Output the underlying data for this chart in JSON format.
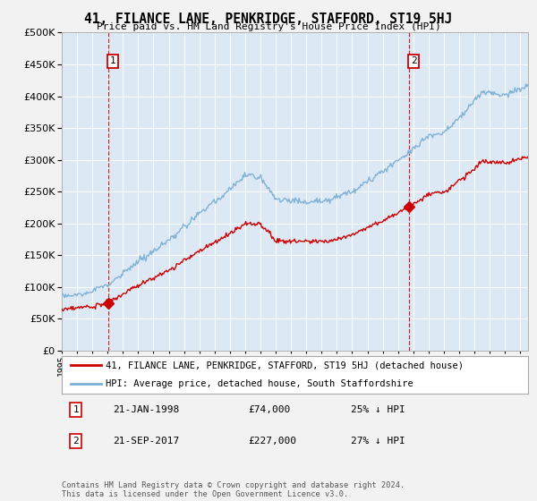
{
  "title": "41, FILANCE LANE, PENKRIDGE, STAFFORD, ST19 5HJ",
  "subtitle": "Price paid vs. HM Land Registry's House Price Index (HPI)",
  "legend_line1": "41, FILANCE LANE, PENKRIDGE, STAFFORD, ST19 5HJ (detached house)",
  "legend_line2": "HPI: Average price, detached house, South Staffordshire",
  "annotation1_date": "21-JAN-1998",
  "annotation1_price": "£74,000",
  "annotation1_hpi": "25% ↓ HPI",
  "annotation2_date": "21-SEP-2017",
  "annotation2_price": "£227,000",
  "annotation2_hpi": "27% ↓ HPI",
  "footer": "Contains HM Land Registry data © Crown copyright and database right 2024.\nThis data is licensed under the Open Government Licence v3.0.",
  "sale1_year": 1998.05,
  "sale1_value": 74000,
  "sale2_year": 2017.72,
  "sale2_value": 227000,
  "hpi_color": "#7bafd4",
  "price_color": "#cc0000",
  "plot_bg": "#dce9f5",
  "fig_bg": "#f2f2f2",
  "ylim": [
    0,
    500000
  ],
  "xlim_start": 1995,
  "xlim_end": 2025.5
}
